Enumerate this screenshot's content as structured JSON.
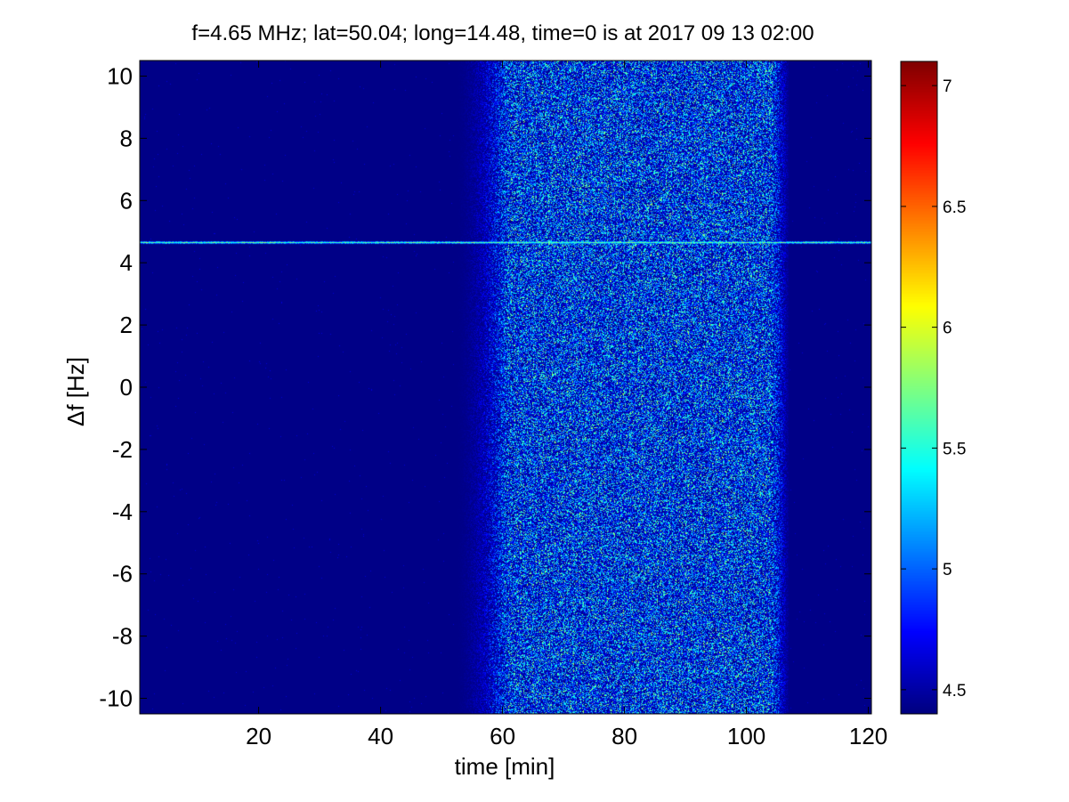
{
  "chart_data": {
    "type": "heatmap",
    "title": "f=4.65 MHz;  lat=50.04; long=14.48, time=0 is at 2017 09 13 02:00",
    "xlabel": "time [min]",
    "ylabel": "Δf [Hz]",
    "xlim": [
      0.5,
      120.5
    ],
    "ylim": [
      -10.5,
      10.5
    ],
    "x_ticks": [
      20,
      40,
      60,
      80,
      100,
      120
    ],
    "y_ticks": [
      -10,
      -8,
      -6,
      -4,
      -2,
      0,
      2,
      4,
      6,
      8,
      10
    ],
    "colorbar": {
      "range": [
        4.4,
        7.1
      ],
      "ticks": [
        4.5,
        5,
        5.5,
        6,
        6.5,
        7
      ],
      "colormap": "jet"
    },
    "background_level": 4.42,
    "carrier_line": {
      "df": 4.65,
      "from_min": 0.5,
      "to_min": 120.5,
      "level": 5.6
    },
    "noise_band": {
      "from_min": 52,
      "to_min": 107,
      "peak_from_min": 61,
      "peak_to_min": 104,
      "typical_level_range": [
        4.5,
        5.6
      ]
    }
  },
  "colors": {
    "background": "#ffffff",
    "axes_frame": "#000000"
  }
}
